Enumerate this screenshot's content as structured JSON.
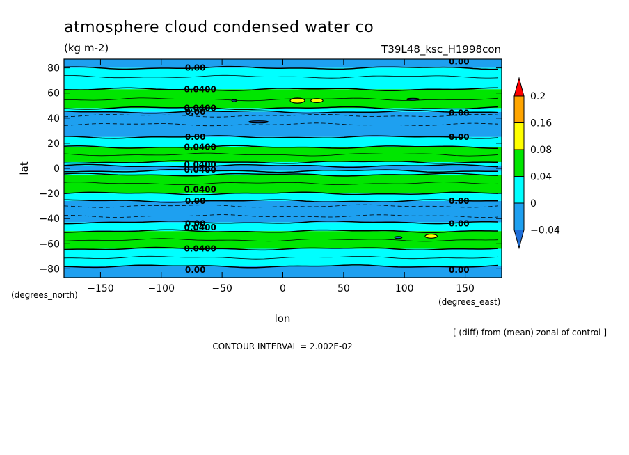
{
  "header": {
    "title": "atmosphere cloud condensed water co",
    "units": "(kg m-2)",
    "run_label": "T39L48_ksc_H1998con"
  },
  "footer": {
    "diff_note": "[ (diff) from (mean) zonal of control ]",
    "contour_interval": "CONTOUR INTERVAL = 2.002E-02"
  },
  "chart_data": {
    "type": "contour",
    "xlabel": "lon",
    "ylabel": "lat",
    "x_units": "(degrees_east)",
    "y_units": "(degrees_north)",
    "xlim": [
      -180,
      180
    ],
    "ylim": [
      -87,
      87
    ],
    "x_ticks": [
      -150,
      -100,
      -50,
      0,
      50,
      100,
      150
    ],
    "y_ticks": [
      -80,
      -60,
      -40,
      -20,
      0,
      20,
      40,
      60,
      80
    ],
    "colorbar": {
      "levels": [
        -0.04,
        0,
        0.04,
        0.08,
        0.16,
        0.2
      ],
      "labels": [
        "-0.04",
        "0",
        "0.04",
        "0.08",
        "0.16",
        "0.2"
      ],
      "colors": {
        "below_-0.04": "#1e6ed8",
        "-0.04_to_0": "#1ea0f0",
        "0_to_0.04": "#00ffff",
        "0.04_to_0.08": "#00e600",
        "0.08_to_0.16": "#ffff00",
        "0.16_to_0.2": "#ffa500",
        "above_0.2": "#ff0000"
      }
    },
    "zonal_bands": [
      {
        "lat_range": [
          80,
          87
        ],
        "class": "-0.04_to_0"
      },
      {
        "lat_range": [
          63,
          80
        ],
        "class": "0_to_0.04"
      },
      {
        "lat_range": [
          48,
          63
        ],
        "class": "0.04_to_0.08"
      },
      {
        "lat_range": [
          45,
          48
        ],
        "class": "0_to_0.04"
      },
      {
        "lat_range": [
          25,
          45
        ],
        "class": "-0.04_to_0"
      },
      {
        "lat_range": [
          17,
          25
        ],
        "class": "0_to_0.04"
      },
      {
        "lat_range": [
          5,
          17
        ],
        "class": "0.04_to_0.08"
      },
      {
        "lat_range": [
          2,
          5
        ],
        "class": "0_to_0.04"
      },
      {
        "lat_range": [
          -2,
          2
        ],
        "class": "-0.04_to_0"
      },
      {
        "lat_range": [
          -5,
          -2
        ],
        "class": "0_to_0.04"
      },
      {
        "lat_range": [
          -20,
          -5
        ],
        "class": "0.04_to_0.08"
      },
      {
        "lat_range": [
          -26,
          -20
        ],
        "class": "0_to_0.04"
      },
      {
        "lat_range": [
          -43,
          -26
        ],
        "class": "-0.04_to_0"
      },
      {
        "lat_range": [
          -50,
          -43
        ],
        "class": "0_to_0.04"
      },
      {
        "lat_range": [
          -64,
          -50
        ],
        "class": "0.04_to_0.08"
      },
      {
        "lat_range": [
          -78,
          -64
        ],
        "class": "0_to_0.04"
      },
      {
        "lat_range": [
          -87,
          -78
        ],
        "class": "-0.04_to_0"
      }
    ],
    "contour_lines": [
      {
        "lat": 80,
        "style": "solid",
        "width": 1.5
      },
      {
        "lat": 73,
        "style": "solid",
        "width": 0.8
      },
      {
        "lat": 63,
        "style": "solid",
        "width": 1.5
      },
      {
        "lat": 55,
        "style": "solid",
        "width": 0.8
      },
      {
        "lat": 48,
        "style": "solid",
        "width": 1.5
      },
      {
        "lat": 45,
        "style": "solid",
        "width": 1.5
      },
      {
        "lat": 42,
        "style": "dashed",
        "width": 0.8
      },
      {
        "lat": 35,
        "style": "dashed",
        "width": 0.8
      },
      {
        "lat": 25,
        "style": "solid",
        "width": 1.5
      },
      {
        "lat": 17,
        "style": "solid",
        "width": 1.5
      },
      {
        "lat": 11,
        "style": "solid",
        "width": 0.8
      },
      {
        "lat": 5,
        "style": "solid",
        "width": 1.5
      },
      {
        "lat": 2,
        "style": "solid",
        "width": 1.5
      },
      {
        "lat": -2,
        "style": "solid",
        "width": 1.5
      },
      {
        "lat": -5,
        "style": "solid",
        "width": 1.5
      },
      {
        "lat": -12,
        "style": "solid",
        "width": 0.8
      },
      {
        "lat": -20,
        "style": "solid",
        "width": 1.5
      },
      {
        "lat": -26,
        "style": "solid",
        "width": 1.5
      },
      {
        "lat": -30,
        "style": "dashed",
        "width": 0.8
      },
      {
        "lat": -38,
        "style": "dashed",
        "width": 0.8
      },
      {
        "lat": -43,
        "style": "solid",
        "width": 1.5
      },
      {
        "lat": -50,
        "style": "solid",
        "width": 1.5
      },
      {
        "lat": -57,
        "style": "solid",
        "width": 0.8
      },
      {
        "lat": -64,
        "style": "solid",
        "width": 1.5
      },
      {
        "lat": -71,
        "style": "solid",
        "width": 0.8
      },
      {
        "lat": -78,
        "style": "solid",
        "width": 1.5
      }
    ],
    "blobs": [
      {
        "lon": 12,
        "lat": 54,
        "rlon": 6,
        "rlat": 2,
        "class": "0.08_to_0.16"
      },
      {
        "lon": 28,
        "lat": 54,
        "rlon": 5,
        "rlat": 1.6,
        "class": "0.08_to_0.16"
      },
      {
        "lon": 107,
        "lat": 55,
        "rlon": 5,
        "rlat": 0.8,
        "class": "below_-0.04"
      },
      {
        "lon": -40,
        "lat": 54,
        "rlon": 2,
        "rlat": 0.8,
        "class": "-0.04_to_0"
      },
      {
        "lon": -20,
        "lat": 37,
        "rlon": 8,
        "rlat": 0.8,
        "class": "below_-0.04"
      },
      {
        "lon": 122,
        "lat": -54,
        "rlon": 5,
        "rlat": 1.6,
        "class": "0.08_to_0.16"
      },
      {
        "lon": 95,
        "lat": -55,
        "rlon": 3,
        "rlat": 0.8,
        "class": "below_-0.04"
      }
    ],
    "contour_labels": [
      {
        "text": "0.00",
        "lon": -72,
        "lat": 80
      },
      {
        "text": "0.0400",
        "lon": -68,
        "lat": 63
      },
      {
        "text": "0.0400",
        "lon": -68,
        "lat": 48
      },
      {
        "text": "0.00",
        "lon": -72,
        "lat": 45
      },
      {
        "text": "0.00",
        "lon": -72,
        "lat": 25
      },
      {
        "text": "0.0400",
        "lon": -68,
        "lat": 17
      },
      {
        "text": "0.0400",
        "lon": -68,
        "lat": 3
      },
      {
        "text": "0.0400",
        "lon": -68,
        "lat": -1
      },
      {
        "text": "0.0400",
        "lon": -68,
        "lat": -17
      },
      {
        "text": "0.00",
        "lon": -72,
        "lat": -26
      },
      {
        "text": "0.00",
        "lon": -72,
        "lat": -44
      },
      {
        "text": "0.0400",
        "lon": -68,
        "lat": -47
      },
      {
        "text": "0.0400",
        "lon": -68,
        "lat": -64
      },
      {
        "text": "0.00",
        "lon": -72,
        "lat": -81
      },
      {
        "text": "0.00",
        "lon": 145,
        "lat": 85
      },
      {
        "text": "0.00",
        "lon": 145,
        "lat": 44
      },
      {
        "text": "0.00",
        "lon": 145,
        "lat": 25
      },
      {
        "text": "0.00",
        "lon": 145,
        "lat": -26
      },
      {
        "text": "0.00",
        "lon": 145,
        "lat": -44
      },
      {
        "text": "0.00",
        "lon": 145,
        "lat": -81
      }
    ]
  }
}
